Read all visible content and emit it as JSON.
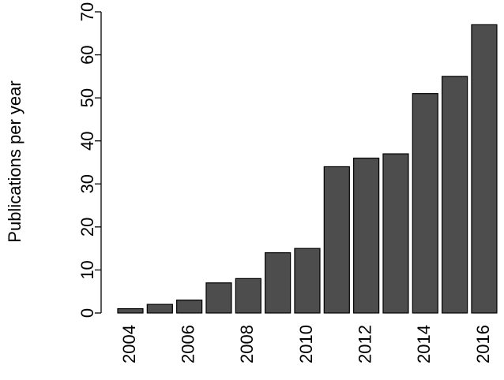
{
  "chart_data": {
    "type": "bar",
    "y_label": "Publications per year",
    "categories": [
      "2004",
      null,
      "2006",
      null,
      "2008",
      null,
      "2010",
      null,
      "2012",
      null,
      "2014",
      null,
      "2016"
    ],
    "values": [
      1,
      2,
      3,
      7,
      8,
      14,
      15,
      34,
      36,
      37,
      51,
      55,
      67
    ],
    "color": "#4d4d4d",
    "ylim": [
      0,
      70
    ],
    "yticks": [
      0,
      10,
      20,
      30,
      40,
      50,
      60,
      70
    ]
  }
}
